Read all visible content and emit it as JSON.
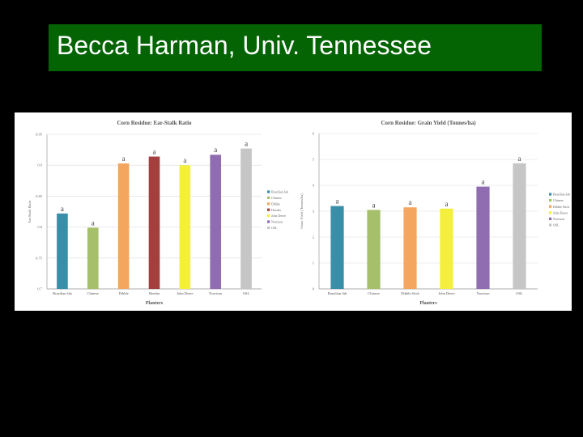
{
  "slide": {
    "title": "Becca Harman, Univ. Tennessee",
    "colors": {
      "background": "#000000",
      "title_bar": "#046404",
      "title_text": "#ffffff"
    }
  },
  "chart_data": [
    {
      "type": "bar",
      "title": "Corn Residue: Ear-Stalk Ratio",
      "xlabel": "Planters",
      "ylabel": "Ear:Stalk Ratio",
      "ylim": [
        0.7,
        0.95
      ],
      "yticks": [
        "0.7",
        "0.75",
        "0.8",
        "0.85",
        "0.9",
        "0.95"
      ],
      "categories": [
        "Brazilian Jab",
        "Chinese",
        "Dibble",
        "Hoedas",
        "John Deere",
        "Norrison",
        "OSL"
      ],
      "values": [
        0.822,
        0.799,
        0.903,
        0.914,
        0.9,
        0.917,
        0.927
      ],
      "letters": [
        "a",
        "a",
        "a",
        "a",
        "a",
        "a",
        "a"
      ],
      "colors": [
        "#3a8fa8",
        "#a5bf6a",
        "#f4a65e",
        "#a33f3c",
        "#f3ef3c",
        "#8f6db0",
        "#c6c6c6"
      ],
      "legend": [
        "Brazilian Jab",
        "Chinese",
        "Dibble",
        "Hoedas",
        "John Deere",
        "Norrison",
        "OSL"
      ],
      "legend_position": "right",
      "grid": true
    },
    {
      "type": "bar",
      "title": "Corn Residue: Grain Yield (Tonnes/ha)",
      "xlabel": "Planters",
      "ylabel": "Grain Yield (Tonnes/ha)",
      "ylim": [
        0,
        6
      ],
      "yticks": [
        "0",
        "1",
        "2",
        "3",
        "4",
        "5",
        "6"
      ],
      "categories": [
        "Brazilian Jab",
        "Chinese",
        "Dibble Stick",
        "John Deere",
        "Norrison",
        "OSL"
      ],
      "values": [
        3.2,
        3.05,
        3.15,
        3.1,
        3.95,
        4.85
      ],
      "letters": [
        "a",
        "a",
        "a",
        "a",
        "a",
        "a"
      ],
      "colors": [
        "#3a8fa8",
        "#a5bf6a",
        "#f4a65e",
        "#f3ef3c",
        "#8f6db0",
        "#c6c6c6"
      ],
      "legend": [
        "Brazilian Jab",
        "Chinese",
        "Dibble Stick",
        "John Deere",
        "Norrison",
        "OSL"
      ],
      "legend_position": "right",
      "grid": true
    }
  ]
}
